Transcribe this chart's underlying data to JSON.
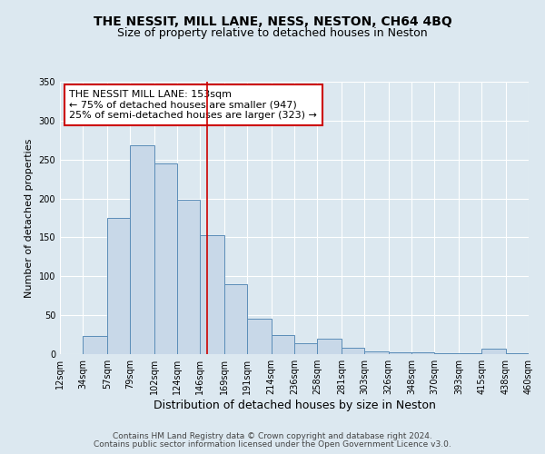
{
  "title": "THE NESSIT, MILL LANE, NESS, NESTON, CH64 4BQ",
  "subtitle": "Size of property relative to detached houses in Neston",
  "xlabel": "Distribution of detached houses by size in Neston",
  "ylabel": "Number of detached properties",
  "bar_left_edges": [
    12,
    34,
    57,
    79,
    102,
    124,
    146,
    169,
    191,
    214,
    236,
    258,
    281,
    303,
    326,
    348,
    370,
    393,
    415,
    438
  ],
  "bar_widths": [
    22,
    23,
    22,
    23,
    22,
    22,
    23,
    22,
    23,
    22,
    22,
    23,
    22,
    23,
    22,
    22,
    23,
    22,
    23,
    22
  ],
  "bar_heights": [
    0,
    23,
    175,
    268,
    245,
    198,
    153,
    90,
    46,
    25,
    14,
    20,
    8,
    3,
    2,
    2,
    1,
    1,
    7,
    1
  ],
  "bar_color": "#c8d8e8",
  "bar_edge_color": "#5b8db8",
  "tick_labels": [
    "12sqm",
    "34sqm",
    "57sqm",
    "79sqm",
    "102sqm",
    "124sqm",
    "146sqm",
    "169sqm",
    "191sqm",
    "214sqm",
    "236sqm",
    "258sqm",
    "281sqm",
    "303sqm",
    "326sqm",
    "348sqm",
    "370sqm",
    "393sqm",
    "415sqm",
    "438sqm",
    "460sqm"
  ],
  "vline_x": 153,
  "vline_color": "#cc0000",
  "annotation_title": "THE NESSIT MILL LANE: 153sqm",
  "annotation_line1": "← 75% of detached houses are smaller (947)",
  "annotation_line2": "25% of semi-detached houses are larger (323) →",
  "annotation_box_color": "#cc0000",
  "ylim": [
    0,
    350
  ],
  "yticks": [
    0,
    50,
    100,
    150,
    200,
    250,
    300,
    350
  ],
  "footer1": "Contains HM Land Registry data © Crown copyright and database right 2024.",
  "footer2": "Contains public sector information licensed under the Open Government Licence v3.0.",
  "bg_color": "#dce8f0",
  "plot_bg_color": "#dce8f0",
  "grid_color": "#ffffff",
  "title_fontsize": 10,
  "subtitle_fontsize": 9,
  "xlabel_fontsize": 9,
  "ylabel_fontsize": 8,
  "tick_fontsize": 7,
  "footer_fontsize": 6.5,
  "annotation_fontsize": 8
}
